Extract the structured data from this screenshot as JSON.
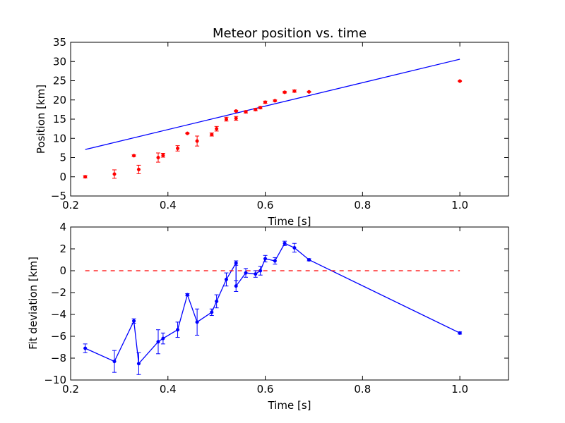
{
  "chart_data": [
    {
      "type": "scatter",
      "title": "Meteor position vs. time",
      "xlabel": "Time [s]",
      "ylabel": "Position [km]",
      "xlim": [
        0.2,
        1.1
      ],
      "ylim": [
        -5,
        35
      ],
      "xticks": [
        "0.2",
        "0.4",
        "0.6",
        "0.8",
        "1.0"
      ],
      "yticks": [
        "−5",
        "0",
        "5",
        "10",
        "15",
        "20",
        "25",
        "30",
        "35"
      ],
      "grid": false,
      "colors": {
        "points": "#ff0000",
        "fit": "#0000ff"
      },
      "series": [
        {
          "kind": "errorbar-points",
          "x": [
            0.23,
            0.29,
            0.33,
            0.34,
            0.38,
            0.39,
            0.42,
            0.44,
            0.46,
            0.49,
            0.5,
            0.52,
            0.54,
            0.54,
            0.56,
            0.58,
            0.59,
            0.6,
            0.62,
            0.64,
            0.66,
            0.69,
            1.0
          ],
          "y": [
            0.0,
            0.7,
            5.5,
            1.9,
            5.0,
            5.6,
            7.4,
            11.3,
            9.3,
            11.0,
            12.5,
            15.0,
            17.1,
            15.2,
            16.9,
            17.5,
            18.0,
            19.4,
            19.8,
            22.0,
            22.3,
            22.1,
            24.9
          ],
          "yerr": [
            0.3,
            1.1,
            0.2,
            1.1,
            1.2,
            0.5,
            0.7,
            0.1,
            1.3,
            0.4,
            0.6,
            0.5,
            0.2,
            0.5,
            0.3,
            0.3,
            0.3,
            0.3,
            0.2,
            0.2,
            0.3,
            0.1,
            0.1
          ]
        },
        {
          "kind": "fit-line",
          "x": [
            0.23,
            1.0
          ],
          "y": [
            7.1,
            30.6
          ]
        }
      ]
    },
    {
      "type": "line",
      "title": "",
      "xlabel": "Time [s]",
      "ylabel": "Fit deviation [km]",
      "xlim": [
        0.2,
        1.1
      ],
      "ylim": [
        -10,
        4
      ],
      "xticks": [
        "0.2",
        "0.4",
        "0.6",
        "0.8",
        "1.0"
      ],
      "yticks": [
        "−10",
        "−8",
        "−6",
        "−4",
        "−2",
        "0",
        "2",
        "4"
      ],
      "grid": false,
      "colors": {
        "line": "#0000ff",
        "zero": "#ff0000"
      },
      "series": [
        {
          "kind": "errorbar-line",
          "x": [
            0.23,
            0.29,
            0.33,
            0.34,
            0.38,
            0.39,
            0.42,
            0.44,
            0.46,
            0.49,
            0.5,
            0.52,
            0.54,
            0.54,
            0.56,
            0.58,
            0.59,
            0.6,
            0.62,
            0.64,
            0.66,
            0.69,
            1.0
          ],
          "y": [
            -7.1,
            -8.3,
            -4.6,
            -8.5,
            -6.5,
            -6.2,
            -5.4,
            -2.2,
            -4.7,
            -3.8,
            -2.8,
            -0.8,
            0.7,
            -1.4,
            -0.2,
            -0.3,
            0.0,
            1.1,
            0.9,
            2.5,
            2.1,
            1.0,
            -5.7
          ],
          "yerr": [
            0.4,
            1.0,
            0.2,
            1.0,
            1.1,
            0.5,
            0.7,
            0.1,
            1.2,
            0.3,
            0.6,
            0.6,
            0.2,
            0.5,
            0.4,
            0.3,
            0.4,
            0.3,
            0.3,
            0.2,
            0.4,
            0.1,
            0.1
          ]
        },
        {
          "kind": "zero-reference-dashed",
          "x": [
            0.23,
            1.0
          ],
          "y": [
            0,
            0
          ]
        }
      ]
    }
  ]
}
